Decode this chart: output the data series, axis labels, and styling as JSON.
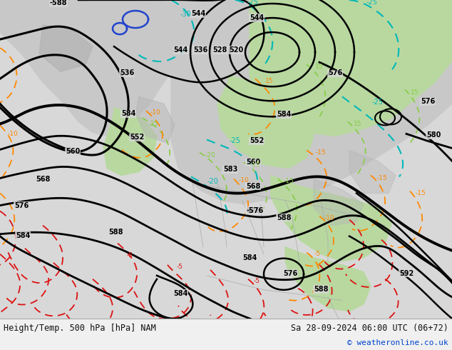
{
  "title_left": "Height/Temp. 500 hPa [hPa] NAM",
  "title_right": "Sa 28-09-2024 06:00 UTC (06+72)",
  "copyright": "© weatheronline.co.uk",
  "text_color": "#111111",
  "copyright_color": "#0044cc",
  "bg_color": "#f0f0f0",
  "ocean_color": "#d8d8d8",
  "land_gray_color": "#c8c8c8",
  "land_green_color": "#b8d8a0",
  "map_border_color": "#888888"
}
